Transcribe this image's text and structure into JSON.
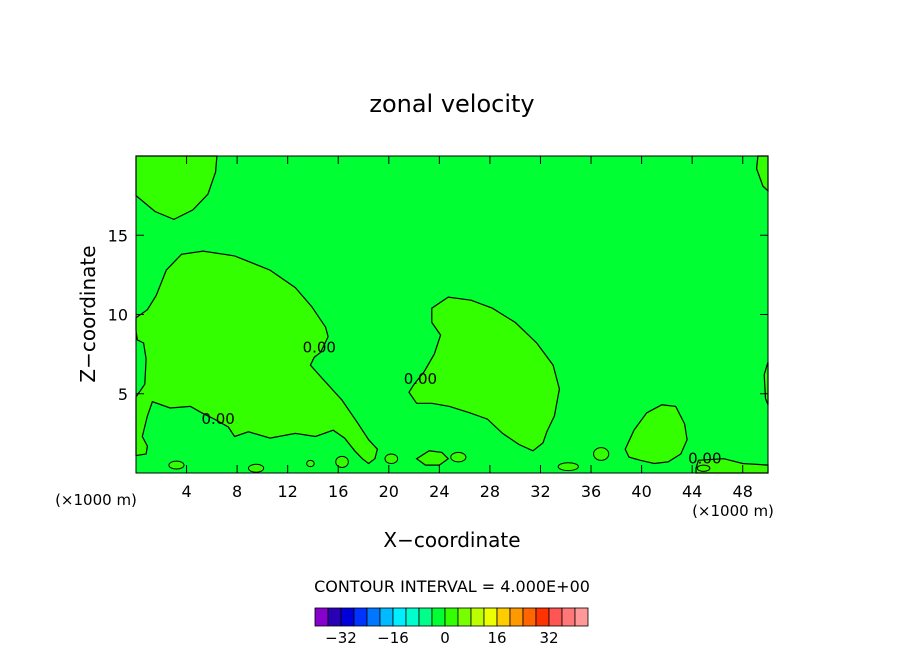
{
  "chart_data": {
    "type": "contour",
    "title": "zonal velocity",
    "xlabel": "X−coordinate",
    "ylabel": "Z−coordinate",
    "x_units_left": "(×1000 m)",
    "x_units_right": "(×1000 m)",
    "xlim": [
      0,
      50
    ],
    "ylim": [
      0,
      20
    ],
    "x_ticks": [
      4,
      8,
      12,
      16,
      20,
      24,
      28,
      32,
      36,
      40,
      44,
      48
    ],
    "y_ticks": [
      5,
      10,
      15
    ],
    "grid": false,
    "background_level_color": "#00ff33",
    "positive_region_color": "#33ff00",
    "contour_labels": [
      {
        "text": "0.00",
        "x": 14.5,
        "y": 7.6
      },
      {
        "text": "0.00",
        "x": 22.5,
        "y": 5.6
      },
      {
        "text": "0.00",
        "x": 6.5,
        "y": 3.1
      },
      {
        "text": "0.00",
        "x": 45,
        "y": 0.6
      }
    ],
    "contour_interval_text": "CONTOUR INTERVAL = 4.000E+00",
    "colorbar": {
      "tick_labels": [
        "−32",
        "−16",
        "0",
        "16",
        "32"
      ],
      "tick_values": [
        -32,
        -16,
        0,
        16,
        32
      ],
      "colors": [
        "#8800cc",
        "#2a00b4",
        "#0000dd",
        "#0033ff",
        "#0077ff",
        "#00bbff",
        "#00eeff",
        "#00ffcc",
        "#00ff88",
        "#00ff33",
        "#33ff00",
        "#77ff00",
        "#bbff00",
        "#eeff00",
        "#ffcc00",
        "#ff9900",
        "#ff6600",
        "#ff3300",
        "#ff5555",
        "#ff7777",
        "#ff9999"
      ]
    }
  }
}
